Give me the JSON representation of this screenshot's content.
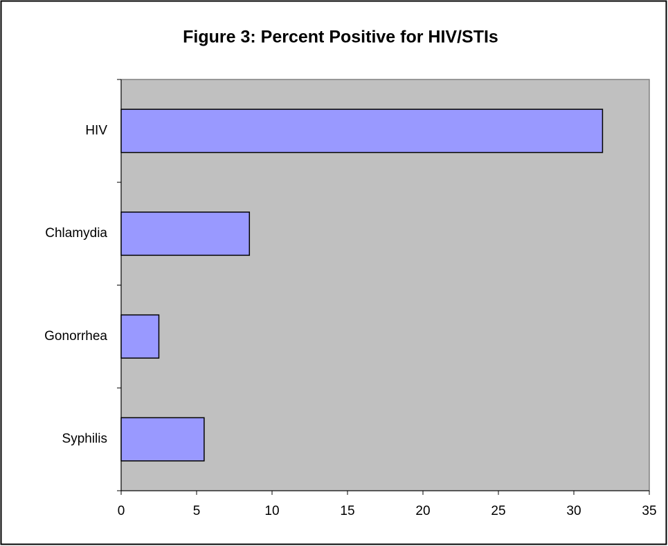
{
  "chart_data": {
    "type": "bar",
    "orientation": "horizontal",
    "title": "Figure 3: Percent  Positive for HIV/STIs",
    "categories": [
      "HIV",
      "Chlamydia",
      "Gonorrhea",
      "Syphilis"
    ],
    "values": [
      31.9,
      8.5,
      2.5,
      5.5
    ],
    "color": "#9999ff",
    "plot_background": "#c0c0c0",
    "xlim": [
      0,
      35
    ],
    "xticks": [
      0,
      5,
      10,
      15,
      20,
      25,
      30,
      35
    ],
    "grid": false
  }
}
